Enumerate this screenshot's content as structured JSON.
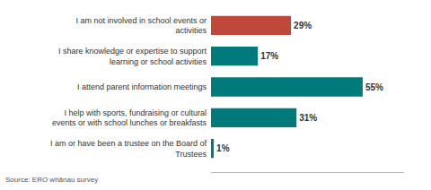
{
  "chart_data": {
    "type": "bar",
    "orientation": "horizontal",
    "categories": [
      "I am or have been a trustee on the Board of\nTrustees",
      "I help with sports, fundraising or cultural\nevents or with school lunches or breakfasts",
      "I attend parent information meetings",
      "I share knowledge or expertise to support\nlearning or school activities",
      "I am not involved in school events or\nactivities"
    ],
    "values": [
      1,
      31,
      55,
      17,
      29
    ],
    "value_labels": [
      "1%",
      "31%",
      "55%",
      "17%",
      "29%"
    ],
    "colors": [
      "#007a7a",
      "#007a7a",
      "#007a7a",
      "#007a7a",
      "#c0483a"
    ],
    "xlim": [
      0,
      70
    ],
    "data_labels": true,
    "tick_labels": "y",
    "grid": false,
    "annotations": [
      "Source: ERO whānau survey"
    ]
  }
}
